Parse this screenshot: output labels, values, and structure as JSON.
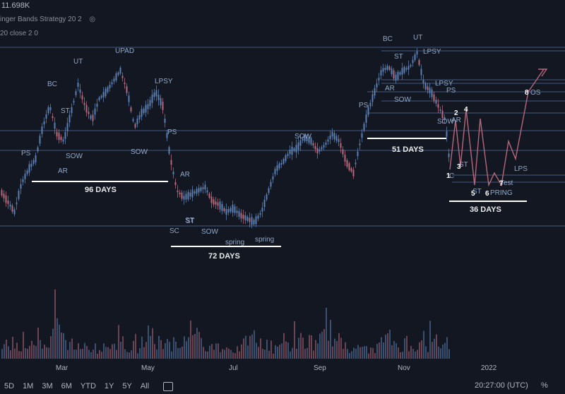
{
  "header": {
    "price_label": "11.698K",
    "indicator_1": "inger Bands Strategy 20 2",
    "indicator_2": "20 close 2 0"
  },
  "bottom_bar": {
    "ranges": [
      "5D",
      "1M",
      "3M",
      "6M",
      "YTD",
      "1Y",
      "5Y",
      "All"
    ],
    "clock": "20:27:00 (UTC)",
    "percent": "%"
  },
  "colors": {
    "background": "#131722",
    "candle_up": "#5b7fb3",
    "candle_down": "#b7687a",
    "annotation": "#8fa8c8",
    "horizontal_line": "#4f6a9a",
    "highlight_line": "#ffffff"
  },
  "chart_data": {
    "type": "candlestick",
    "x_tick_labels": [
      "Mar",
      "May",
      "Jul",
      "Sep",
      "Nov",
      "2022"
    ],
    "wyckoff_labels": [
      "PS",
      "BC",
      "ST",
      "UT",
      "UPAD",
      "LPSY",
      "AR",
      "SOW",
      "ST",
      "SOW",
      "PS",
      "AR",
      "SC",
      "ST",
      "SOW",
      "spring",
      "spring",
      "SOW",
      "BC",
      "UT",
      "ST",
      "LPSY",
      "PS",
      "AR",
      "SOW",
      "LPSY",
      "PS",
      "SOW",
      "AR",
      "C",
      "ST",
      "ST",
      "PRING",
      "Test",
      "LPS",
      "OS"
    ],
    "projection_points": [
      "1",
      "2",
      "3",
      "4",
      "5",
      "6",
      "7",
      "8"
    ],
    "duration_labels": [
      "96 DAYS",
      "72 DAYS",
      "51 DAYS",
      "36 DAYS"
    ],
    "close_path": [
      [
        0,
        270
      ],
      [
        10,
        285
      ],
      [
        20,
        300
      ],
      [
        30,
        260
      ],
      [
        40,
        240
      ],
      [
        50,
        225
      ],
      [
        60,
        180
      ],
      [
        70,
        150
      ],
      [
        80,
        190
      ],
      [
        90,
        200
      ],
      [
        100,
        160
      ],
      [
        110,
        120
      ],
      [
        120,
        150
      ],
      [
        130,
        170
      ],
      [
        140,
        140
      ],
      [
        150,
        130
      ],
      [
        160,
        115
      ],
      [
        170,
        100
      ],
      [
        180,
        130
      ],
      [
        190,
        180
      ],
      [
        200,
        160
      ],
      [
        210,
        150
      ],
      [
        220,
        130
      ],
      [
        230,
        150
      ],
      [
        240,
        220
      ],
      [
        250,
        270
      ],
      [
        260,
        280
      ],
      [
        270,
        275
      ],
      [
        280,
        270
      ],
      [
        290,
        265
      ],
      [
        300,
        285
      ],
      [
        310,
        290
      ],
      [
        320,
        300
      ],
      [
        330,
        295
      ],
      [
        340,
        305
      ],
      [
        350,
        310
      ],
      [
        360,
        315
      ],
      [
        370,
        300
      ],
      [
        380,
        270
      ],
      [
        390,
        240
      ],
      [
        400,
        230
      ],
      [
        410,
        215
      ],
      [
        420,
        210
      ],
      [
        430,
        195
      ],
      [
        440,
        200
      ],
      [
        450,
        215
      ],
      [
        460,
        205
      ],
      [
        470,
        190
      ],
      [
        480,
        200
      ],
      [
        490,
        230
      ],
      [
        500,
        245
      ],
      [
        510,
        200
      ],
      [
        520,
        160
      ],
      [
        530,
        130
      ],
      [
        540,
        100
      ],
      [
        550,
        95
      ],
      [
        560,
        110
      ],
      [
        570,
        100
      ],
      [
        580,
        95
      ],
      [
        590,
        75
      ],
      [
        600,
        120
      ],
      [
        610,
        130
      ],
      [
        620,
        150
      ],
      [
        630,
        170
      ],
      [
        637,
        240
      ]
    ],
    "projection_path": [
      [
        637,
        240
      ],
      [
        645,
        170
      ],
      [
        652,
        235
      ],
      [
        660,
        155
      ],
      [
        672,
        262
      ],
      [
        680,
        168
      ],
      [
        692,
        262
      ],
      [
        700,
        245
      ],
      [
        710,
        262
      ],
      [
        720,
        200
      ],
      [
        730,
        225
      ],
      [
        748,
        130
      ],
      [
        770,
        98
      ]
    ],
    "volume": [
      20,
      30,
      45,
      25,
      35,
      60,
      40,
      55,
      30,
      28,
      70,
      45,
      38,
      50,
      42,
      35,
      30,
      55,
      48,
      40,
      35,
      30,
      45,
      50,
      60,
      130,
      90,
      70,
      55,
      48,
      40,
      45,
      38,
      35,
      42,
      30,
      28,
      35,
      40,
      30,
      25,
      22,
      28,
      35,
      30,
      25,
      20,
      22,
      28,
      30,
      35,
      40,
      55,
      50,
      45,
      60,
      48,
      42,
      38,
      30,
      28,
      35,
      40,
      45
    ]
  }
}
